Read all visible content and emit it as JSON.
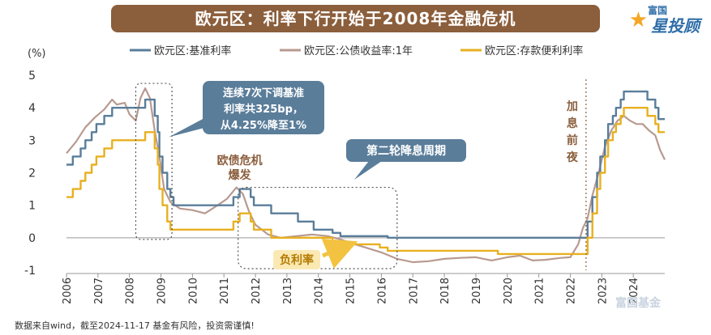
{
  "header": {
    "title": "欧元区：利率下行开始于2008年金融危机",
    "brand_top": "富国",
    "brand_main": "星投顾",
    "brand_icon": "star-icon"
  },
  "footnote": "数据来自wind，截至2024-11-17   基金有风险，投资需谨慎!",
  "watermark": "富国基金",
  "chart_data": {
    "type": "line",
    "unit_label": "(%)",
    "ylim": [
      -1,
      5
    ],
    "yticks": [
      "5",
      "4",
      "3",
      "2",
      "1",
      "0",
      "-1"
    ],
    "xlim": [
      2006,
      2025
    ],
    "xticks": [
      "2006",
      "2007",
      "2008",
      "2009",
      "2010",
      "2011",
      "2012",
      "2013",
      "2014",
      "2015",
      "2016",
      "2017",
      "2018",
      "2019",
      "2020",
      "2021",
      "2022",
      "2023",
      "2024"
    ],
    "legend_position": "top",
    "series": [
      {
        "name": "欧元区:基准利率",
        "color": "#5a7d9a",
        "step": true,
        "points": [
          [
            2006.0,
            2.25
          ],
          [
            2006.2,
            2.5
          ],
          [
            2006.45,
            2.75
          ],
          [
            2006.6,
            3.0
          ],
          [
            2006.8,
            3.25
          ],
          [
            2006.95,
            3.5
          ],
          [
            2007.2,
            3.75
          ],
          [
            2007.45,
            4.0
          ],
          [
            2008.5,
            4.25
          ],
          [
            2008.8,
            3.75
          ],
          [
            2008.9,
            3.25
          ],
          [
            2008.95,
            2.5
          ],
          [
            2009.05,
            2.0
          ],
          [
            2009.2,
            1.5
          ],
          [
            2009.3,
            1.25
          ],
          [
            2009.4,
            1.0
          ],
          [
            2011.3,
            1.25
          ],
          [
            2011.5,
            1.5
          ],
          [
            2011.85,
            1.25
          ],
          [
            2011.95,
            1.0
          ],
          [
            2012.5,
            0.75
          ],
          [
            2013.35,
            0.5
          ],
          [
            2013.85,
            0.25
          ],
          [
            2014.45,
            0.15
          ],
          [
            2014.7,
            0.05
          ],
          [
            2016.2,
            0.0
          ],
          [
            2022.55,
            0.5
          ],
          [
            2022.7,
            1.25
          ],
          [
            2022.85,
            2.0
          ],
          [
            2022.95,
            2.5
          ],
          [
            2023.1,
            3.0
          ],
          [
            2023.2,
            3.5
          ],
          [
            2023.35,
            3.75
          ],
          [
            2023.45,
            4.0
          ],
          [
            2023.6,
            4.25
          ],
          [
            2023.7,
            4.5
          ],
          [
            2024.45,
            4.25
          ],
          [
            2024.7,
            4.0
          ],
          [
            2024.8,
            3.65
          ],
          [
            2025.0,
            3.65
          ]
        ]
      },
      {
        "name": "欧元区:公债收益率:1年",
        "color": "#b89a90",
        "step": false,
        "points": [
          [
            2006.0,
            2.6
          ],
          [
            2006.3,
            2.95
          ],
          [
            2006.6,
            3.4
          ],
          [
            2006.9,
            3.7
          ],
          [
            2007.2,
            3.95
          ],
          [
            2007.45,
            4.25
          ],
          [
            2007.6,
            4.1
          ],
          [
            2007.85,
            4.15
          ],
          [
            2008.0,
            3.8
          ],
          [
            2008.2,
            3.6
          ],
          [
            2008.35,
            4.3
          ],
          [
            2008.5,
            4.6
          ],
          [
            2008.65,
            4.3
          ],
          [
            2008.8,
            3.3
          ],
          [
            2008.95,
            2.5
          ],
          [
            2009.1,
            1.5
          ],
          [
            2009.3,
            1.1
          ],
          [
            2009.6,
            0.9
          ],
          [
            2010.0,
            0.85
          ],
          [
            2010.4,
            0.75
          ],
          [
            2010.8,
            1.0
          ],
          [
            2011.1,
            1.2
          ],
          [
            2011.4,
            1.55
          ],
          [
            2011.6,
            1.35
          ],
          [
            2011.8,
            0.8
          ],
          [
            2012.0,
            0.4
          ],
          [
            2012.4,
            0.1
          ],
          [
            2012.8,
            0.0
          ],
          [
            2013.3,
            0.05
          ],
          [
            2013.8,
            0.1
          ],
          [
            2014.3,
            0.05
          ],
          [
            2014.7,
            -0.05
          ],
          [
            2015.0,
            -0.15
          ],
          [
            2015.5,
            -0.3
          ],
          [
            2016.0,
            -0.45
          ],
          [
            2016.5,
            -0.65
          ],
          [
            2017.0,
            -0.75
          ],
          [
            2017.5,
            -0.72
          ],
          [
            2018.0,
            -0.65
          ],
          [
            2018.5,
            -0.62
          ],
          [
            2019.0,
            -0.6
          ],
          [
            2019.5,
            -0.7
          ],
          [
            2020.0,
            -0.6
          ],
          [
            2020.4,
            -0.55
          ],
          [
            2020.8,
            -0.7
          ],
          [
            2021.2,
            -0.68
          ],
          [
            2021.7,
            -0.62
          ],
          [
            2022.0,
            -0.6
          ],
          [
            2022.25,
            -0.2
          ],
          [
            2022.4,
            0.3
          ],
          [
            2022.55,
            0.6
          ],
          [
            2022.7,
            1.3
          ],
          [
            2022.9,
            2.0
          ],
          [
            2023.1,
            2.8
          ],
          [
            2023.3,
            3.3
          ],
          [
            2023.5,
            3.6
          ],
          [
            2023.7,
            3.75
          ],
          [
            2023.9,
            3.6
          ],
          [
            2024.1,
            3.5
          ],
          [
            2024.3,
            3.5
          ],
          [
            2024.5,
            3.3
          ],
          [
            2024.7,
            3.15
          ],
          [
            2024.85,
            2.7
          ],
          [
            2025.0,
            2.4
          ]
        ]
      },
      {
        "name": "欧元区:存款便利利率",
        "color": "#e8b020",
        "step": true,
        "points": [
          [
            2006.0,
            1.25
          ],
          [
            2006.2,
            1.5
          ],
          [
            2006.45,
            1.75
          ],
          [
            2006.6,
            2.0
          ],
          [
            2006.8,
            2.25
          ],
          [
            2006.95,
            2.5
          ],
          [
            2007.2,
            2.75
          ],
          [
            2007.45,
            3.0
          ],
          [
            2008.5,
            3.25
          ],
          [
            2008.8,
            2.75
          ],
          [
            2008.9,
            2.25
          ],
          [
            2008.95,
            1.5
          ],
          [
            2009.05,
            1.0
          ],
          [
            2009.2,
            0.5
          ],
          [
            2009.3,
            0.25
          ],
          [
            2011.3,
            0.5
          ],
          [
            2011.5,
            0.75
          ],
          [
            2011.85,
            0.5
          ],
          [
            2011.95,
            0.25
          ],
          [
            2012.5,
            0.0
          ],
          [
            2014.45,
            -0.1
          ],
          [
            2014.7,
            -0.2
          ],
          [
            2015.95,
            -0.3
          ],
          [
            2016.2,
            -0.4
          ],
          [
            2019.7,
            -0.5
          ],
          [
            2022.55,
            0.0
          ],
          [
            2022.7,
            0.75
          ],
          [
            2022.85,
            1.5
          ],
          [
            2022.95,
            2.0
          ],
          [
            2023.1,
            2.5
          ],
          [
            2023.2,
            3.0
          ],
          [
            2023.35,
            3.25
          ],
          [
            2023.45,
            3.5
          ],
          [
            2023.6,
            3.75
          ],
          [
            2023.7,
            4.0
          ],
          [
            2024.45,
            3.75
          ],
          [
            2024.7,
            3.5
          ],
          [
            2024.8,
            3.25
          ],
          [
            2025.0,
            3.25
          ]
        ]
      }
    ],
    "annotations": {
      "callout_1": [
        "连续7次下调基准",
        "利率共325bp，",
        "从4.25%降至1%"
      ],
      "callout_2": "第二轮降息周期",
      "crisis_label": [
        "欧债危机",
        "爆发"
      ],
      "negative_label": "负利率",
      "eve_label": [
        "加",
        "息",
        "前",
        "夜"
      ]
    }
  }
}
